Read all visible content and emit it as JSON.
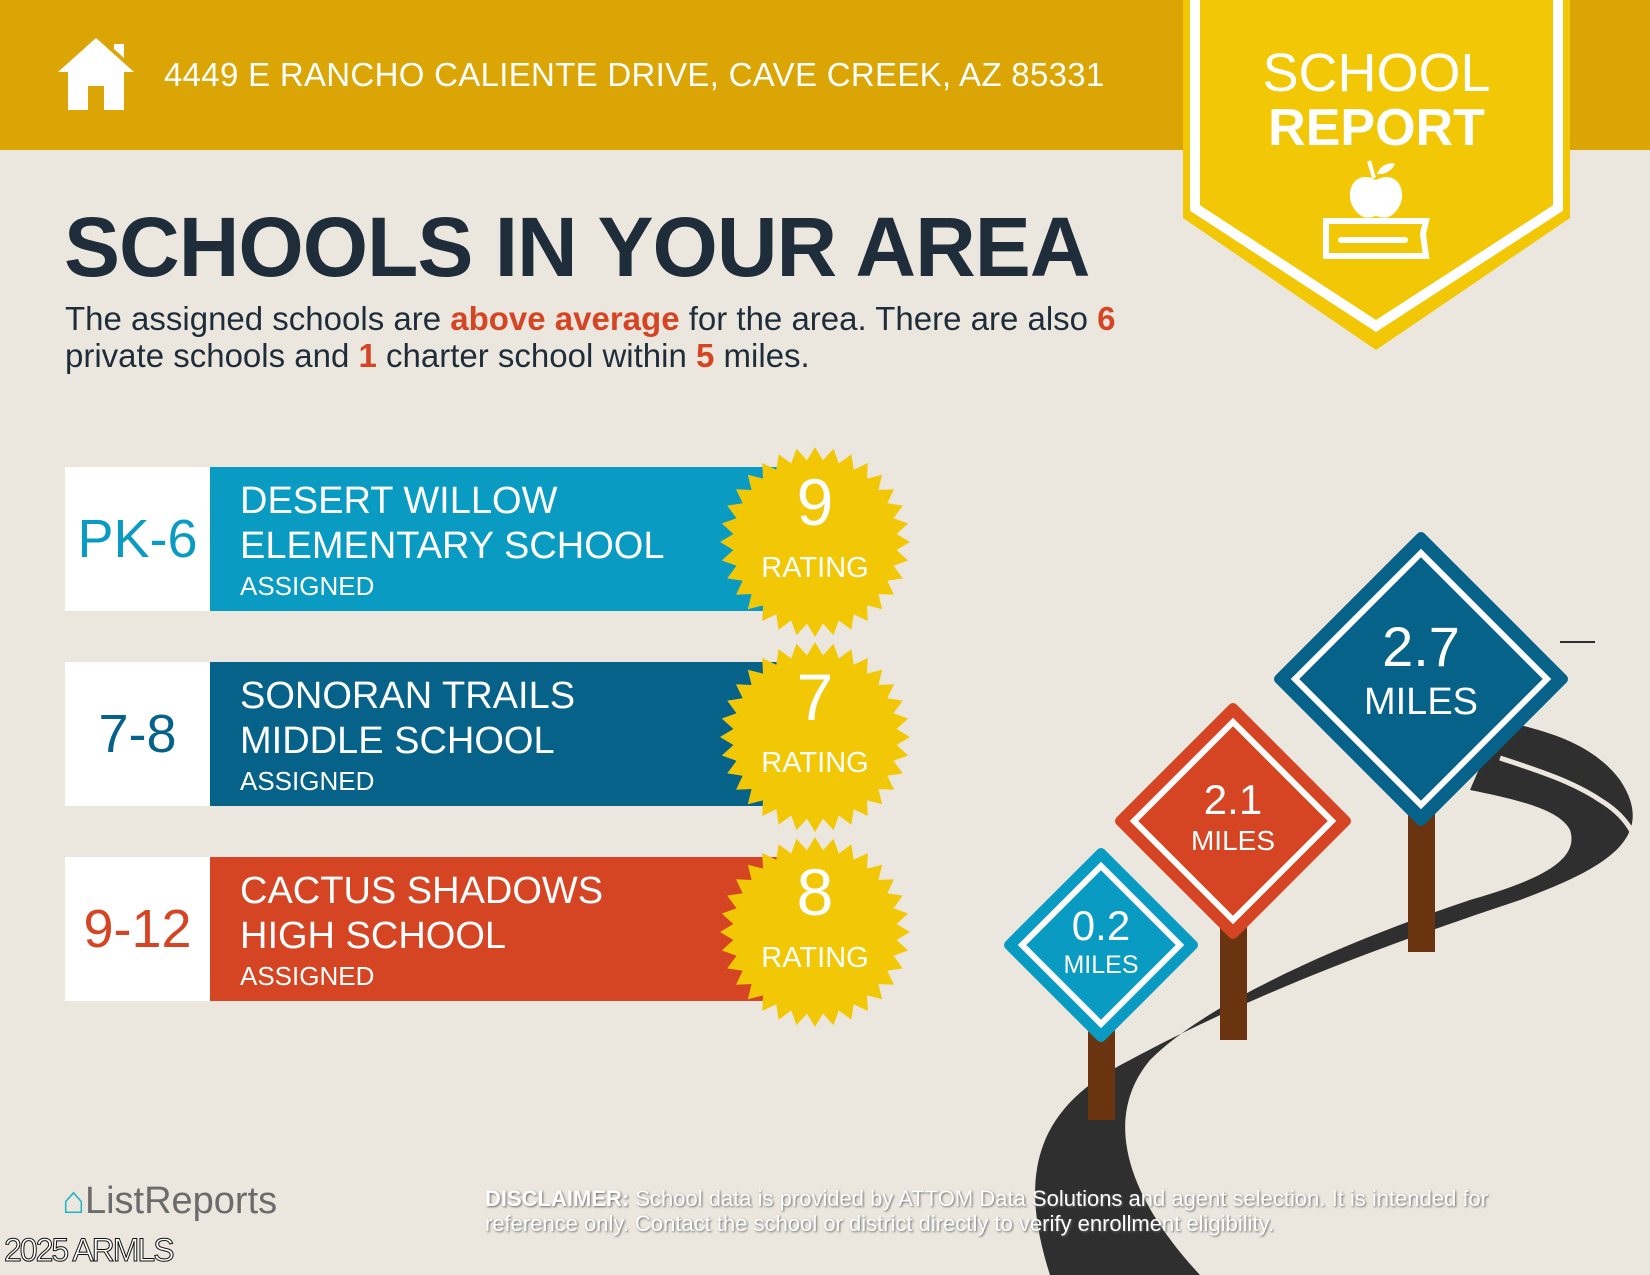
{
  "header": {
    "address": "4449 E RANCHO CALIENTE DRIVE, CAVE CREEK, AZ 85331",
    "icon": "house-icon"
  },
  "badge": {
    "line1": "SCHOOL",
    "line2": "REPORT",
    "icon": "apple-on-book-icon"
  },
  "title": "SCHOOLS IN YOUR AREA",
  "intro": {
    "p1": "The assigned schools are ",
    "highlight": "above average",
    "p2": " for the area. There are also ",
    "private_count": "6",
    "p3": " private schools and ",
    "charter_count": "1",
    "p4": " charter school within ",
    "miles": "5",
    "p5": " miles."
  },
  "schools": [
    {
      "grade": "PK-6",
      "name1": "DESERT WILLOW",
      "name2": "ELEMENTARY SCHOOL",
      "status": "ASSIGNED",
      "rating": "9",
      "rating_label": "RATING",
      "color": "#0a9bc2",
      "distance": "0.2",
      "distance_unit": "MILES"
    },
    {
      "grade": "7-8",
      "name1": "SONORAN TRAILS",
      "name2": "MIDDLE SCHOOL",
      "status": "ASSIGNED",
      "rating": "7",
      "rating_label": "RATING",
      "color": "#07628a",
      "distance": "2.7",
      "distance_unit": "MILES"
    },
    {
      "grade": "9-12",
      "name1": "CACTUS SHADOWS",
      "name2": "HIGH SCHOOL",
      "status": "ASSIGNED",
      "rating": "8",
      "rating_label": "RATING",
      "color": "#d64523",
      "distance": "2.1",
      "distance_unit": "MILES"
    }
  ],
  "colors": {
    "header": "#dba605",
    "badge": "#f2c806",
    "star": "#f2c806",
    "background": "#ebe7df",
    "title": "#1f2d3a",
    "highlight": "#d64523"
  },
  "footer": {
    "logo": "ListReports",
    "copyright": "2025 ARMLS",
    "disclaimer_label": "DISCLAIMER:",
    "disclaimer": " School data is provided by ATTOM Data Solutions and agent selection. It is intended for reference only. Contact the school or district directly to verify enrollment eligibility."
  }
}
